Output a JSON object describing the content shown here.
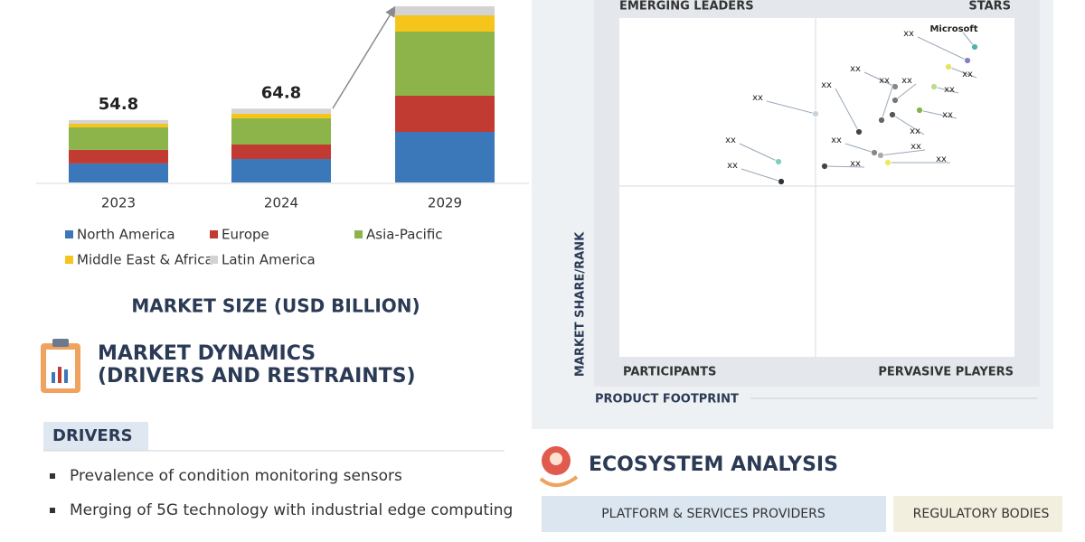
{
  "chart_data": {
    "type": "bar",
    "stacked": true,
    "title": "MARKET SIZE (USD BILLION)",
    "categories": [
      "2023",
      "2024",
      "2029"
    ],
    "series": [
      {
        "name": "North America",
        "color": "#3b78b9",
        "values": [
          16.7,
          20.6,
          44.4
        ]
      },
      {
        "name": "Europe",
        "color": "#c23b32",
        "values": [
          11.9,
          12.7,
          31.7
        ]
      },
      {
        "name": "Asia-Pacific",
        "color": "#8db44b",
        "values": [
          19.8,
          23.0,
          56.3
        ]
      },
      {
        "name": "Middle East & Africa",
        "color": "#f6c51b",
        "values": [
          3.2,
          4.0,
          14.3
        ]
      },
      {
        "name": "Latin America",
        "color": "#d3d3d3",
        "values": [
          3.2,
          4.5,
          7.9
        ]
      }
    ],
    "totals": [
      54.8,
      64.8,
      null
    ]
  },
  "quadrant": {
    "top_left": "EMERGING LEADERS",
    "top_right": "STARS",
    "bottom_left": "PARTICIPANTS",
    "bottom_right": "PERVASIVE PLAYERS",
    "y_label": "MARKET SHARE/RANK",
    "x_label": "PRODUCT FOOTPRINT",
    "points": [
      {
        "label": "Microsoft",
        "color": "#4fb3a9"
      },
      {
        "label": "xx",
        "color": "#8a7fc4"
      },
      {
        "label": "xx",
        "color": "#e8e35a"
      },
      {
        "label": "xx",
        "color": "#888888"
      },
      {
        "label": "xx",
        "color": "#666666"
      },
      {
        "label": "xx",
        "color": "#b9dd8a"
      },
      {
        "label": "xx",
        "color": "#777777"
      },
      {
        "label": "xx",
        "color": "#444444"
      },
      {
        "label": "xx",
        "color": "#c9d3dc"
      },
      {
        "label": "xx",
        "color": "#7fb54a"
      },
      {
        "label": "xx",
        "color": "#555555"
      },
      {
        "label": "xx",
        "color": "#7fcfc0"
      },
      {
        "label": "xx",
        "color": "#888888"
      },
      {
        "label": "xx",
        "color": "#aaaaaa"
      },
      {
        "label": "xx",
        "color": "#444444"
      },
      {
        "label": "xx",
        "color": "#eeea5a"
      },
      {
        "label": "xx",
        "color": "#333333"
      }
    ]
  },
  "dynamics": {
    "title_lines": [
      "MARKET DYNAMICS",
      "(DRIVERS AND RESTRAINTS)"
    ],
    "drivers_heading": "DRIVERS",
    "drivers": [
      "Prevalence of condition monitoring sensors",
      "Merging of 5G technology with industrial edge computing"
    ]
  },
  "ecosystem": {
    "title": "ECOSYSTEM ANALYSIS",
    "categories": [
      "PLATFORM & SERVICES PROVIDERS",
      "REGULATORY BODIES"
    ]
  }
}
